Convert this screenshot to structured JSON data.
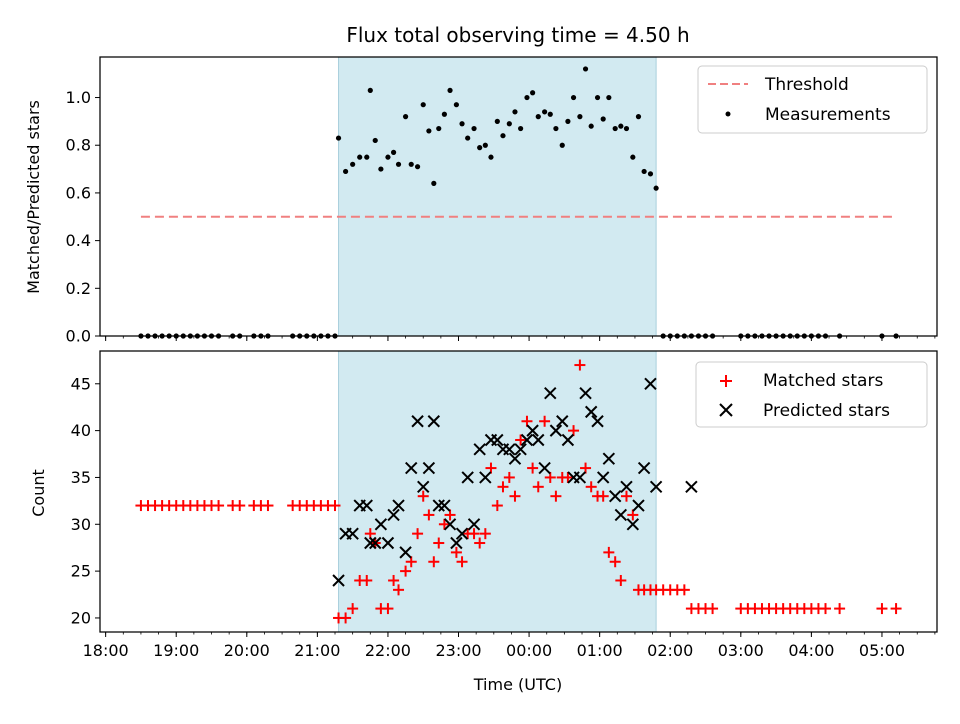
{
  "title": "Flux total observing time = 4.50 h",
  "colors": {
    "threshold": "#f08080",
    "measurement": "#000000",
    "matched": "#ff0000",
    "predicted": "#000000",
    "shade": "#add8e6"
  },
  "x_axis": {
    "label": "Time (UTC)",
    "ticks": [
      {
        "value": 18.0,
        "label": "18:00"
      },
      {
        "value": 19.0,
        "label": "19:00"
      },
      {
        "value": 20.0,
        "label": "20:00"
      },
      {
        "value": 21.0,
        "label": "21:00"
      },
      {
        "value": 22.0,
        "label": "22:00"
      },
      {
        "value": 23.0,
        "label": "23:00"
      },
      {
        "value": 24.0,
        "label": "00:00"
      },
      {
        "value": 25.0,
        "label": "01:00"
      },
      {
        "value": 26.0,
        "label": "02:00"
      },
      {
        "value": 27.0,
        "label": "03:00"
      },
      {
        "value": 28.0,
        "label": "04:00"
      },
      {
        "value": 29.0,
        "label": "05:00"
      }
    ]
  },
  "chart_data": [
    {
      "type": "scatter",
      "ylabel": "Matched/Predicted stars",
      "xlim": [
        17.92,
        29.78
      ],
      "ylim": [
        0,
        1.17
      ],
      "yticks": [
        0.0,
        0.2,
        0.4,
        0.6,
        0.8,
        1.0
      ],
      "yticklabels": [
        "0.0",
        "0.2",
        "0.4",
        "0.6",
        "0.8",
        "1.0"
      ],
      "shaded_interval": [
        21.3,
        25.8
      ],
      "legend": {
        "position": "top-right",
        "entries": [
          "Threshold",
          "Measurements"
        ]
      },
      "threshold": {
        "name": "Threshold",
        "y": 0.5,
        "x": [
          18.5,
          29.2
        ]
      },
      "series": [
        {
          "name": "Measurements",
          "marker": "dot",
          "x": [
            18.5,
            18.6,
            18.7,
            18.8,
            18.9,
            19.0,
            19.1,
            19.2,
            19.3,
            19.4,
            19.5,
            19.6,
            19.8,
            19.9,
            20.1,
            20.2,
            20.3,
            20.65,
            20.75,
            20.85,
            20.95,
            21.05,
            21.15,
            21.25,
            21.3,
            21.4,
            21.5,
            21.6,
            21.7,
            21.75,
            21.82,
            21.9,
            22.0,
            22.08,
            22.15,
            22.25,
            22.33,
            22.42,
            22.5,
            22.58,
            22.65,
            22.72,
            22.8,
            22.88,
            22.97,
            23.05,
            23.13,
            23.22,
            23.3,
            23.38,
            23.46,
            23.55,
            23.63,
            23.72,
            23.8,
            23.88,
            23.97,
            24.05,
            24.13,
            24.22,
            24.3,
            24.38,
            24.47,
            24.55,
            24.63,
            24.72,
            24.8,
            24.88,
            24.97,
            25.05,
            25.13,
            25.22,
            25.3,
            25.38,
            25.47,
            25.55,
            25.63,
            25.72,
            25.8,
            25.9,
            26.0,
            26.1,
            26.2,
            26.3,
            26.4,
            26.5,
            26.6,
            27.0,
            27.1,
            27.2,
            27.3,
            27.4,
            27.5,
            27.6,
            27.7,
            27.8,
            27.9,
            28.0,
            28.1,
            28.2,
            28.4,
            29.0,
            29.2
          ],
          "y": [
            0,
            0,
            0,
            0,
            0,
            0,
            0,
            0,
            0,
            0,
            0,
            0,
            0,
            0,
            0,
            0,
            0,
            0,
            0,
            0,
            0,
            0,
            0,
            0,
            0.83,
            0.69,
            0.72,
            0.75,
            0.75,
            1.03,
            0.82,
            0.7,
            0.75,
            0.77,
            0.72,
            0.92,
            0.72,
            0.71,
            0.97,
            0.86,
            0.64,
            0.87,
            0.93,
            1.03,
            0.97,
            0.89,
            0.83,
            0.87,
            0.79,
            0.8,
            0.75,
            0.9,
            0.84,
            0.89,
            0.94,
            0.87,
            1.0,
            1.02,
            0.92,
            0.94,
            0.93,
            0.87,
            0.8,
            0.9,
            1.0,
            0.92,
            1.12,
            0.88,
            1.0,
            0.91,
            1.0,
            0.87,
            0.88,
            0.87,
            0.75,
            0.92,
            0.69,
            0.68,
            0.62,
            0,
            0,
            0,
            0,
            0,
            0,
            0,
            0,
            0,
            0,
            0,
            0,
            0,
            0,
            0,
            0,
            0,
            0,
            0,
            0,
            0,
            0,
            0,
            0
          ]
        }
      ]
    },
    {
      "type": "scatter",
      "ylabel": "Count",
      "xlabel": "Time (UTC)",
      "xlim": [
        17.92,
        29.78
      ],
      "ylim": [
        18.5,
        48.5
      ],
      "yticks": [
        20,
        25,
        30,
        35,
        40,
        45
      ],
      "yticklabels": [
        "20",
        "25",
        "30",
        "35",
        "40",
        "45"
      ],
      "shaded_interval": [
        21.3,
        25.8
      ],
      "legend": {
        "position": "top-right",
        "entries": [
          "Matched stars",
          "Predicted stars"
        ]
      },
      "series": [
        {
          "name": "Matched stars",
          "marker": "plus",
          "x": [
            18.5,
            18.6,
            18.7,
            18.8,
            18.9,
            19.0,
            19.1,
            19.2,
            19.3,
            19.4,
            19.5,
            19.6,
            19.8,
            19.9,
            20.1,
            20.2,
            20.3,
            20.65,
            20.75,
            20.85,
            20.95,
            21.05,
            21.15,
            21.25,
            21.3,
            21.4,
            21.5,
            21.6,
            21.7,
            21.75,
            21.82,
            21.9,
            22.0,
            22.08,
            22.15,
            22.25,
            22.33,
            22.42,
            22.5,
            22.58,
            22.65,
            22.72,
            22.8,
            22.88,
            22.97,
            23.05,
            23.13,
            23.22,
            23.3,
            23.38,
            23.46,
            23.55,
            23.63,
            23.72,
            23.8,
            23.88,
            23.97,
            24.05,
            24.13,
            24.22,
            24.3,
            24.38,
            24.47,
            24.55,
            24.63,
            24.72,
            24.8,
            24.88,
            24.97,
            25.05,
            25.13,
            25.22,
            25.3,
            25.38,
            25.47,
            25.55,
            25.63,
            25.72,
            25.8,
            25.9,
            26.0,
            26.1,
            26.2,
            26.3,
            26.4,
            26.5,
            26.6,
            27.0,
            27.1,
            27.2,
            27.3,
            27.4,
            27.5,
            27.6,
            27.7,
            27.8,
            27.9,
            28.0,
            28.1,
            28.2,
            28.4,
            29.0,
            29.2
          ],
          "y": [
            32,
            32,
            32,
            32,
            32,
            32,
            32,
            32,
            32,
            32,
            32,
            32,
            32,
            32,
            32,
            32,
            32,
            32,
            32,
            32,
            32,
            32,
            32,
            32,
            20,
            20,
            21,
            24,
            24,
            29,
            28,
            21,
            21,
            24,
            23,
            25,
            26,
            29,
            33,
            31,
            26,
            28,
            30,
            31,
            27,
            26,
            29,
            29,
            28,
            29,
            36,
            32,
            34,
            35,
            33,
            39,
            41,
            36,
            34,
            41,
            35,
            33,
            35,
            35,
            40,
            47,
            36,
            34,
            33,
            33,
            27,
            26,
            24,
            33,
            31,
            23,
            23,
            23,
            23,
            23,
            23,
            23,
            23,
            21,
            21,
            21,
            21,
            21,
            21,
            21,
            21,
            21,
            21,
            21,
            21,
            21,
            21,
            21,
            21,
            21,
            21,
            21,
            21
          ]
        },
        {
          "name": "Predicted stars",
          "marker": "x",
          "x": [
            21.3,
            21.4,
            21.5,
            21.6,
            21.7,
            21.75,
            21.82,
            21.9,
            22.0,
            22.08,
            22.15,
            22.25,
            22.33,
            22.42,
            22.5,
            22.58,
            22.65,
            22.72,
            22.8,
            22.88,
            22.97,
            23.05,
            23.13,
            23.22,
            23.3,
            23.38,
            23.46,
            23.55,
            23.63,
            23.72,
            23.8,
            23.88,
            23.97,
            24.05,
            24.13,
            24.22,
            24.3,
            24.38,
            24.47,
            24.55,
            24.63,
            24.72,
            24.8,
            24.88,
            24.97,
            25.05,
            25.13,
            25.22,
            25.3,
            25.38,
            25.47,
            25.55,
            25.63,
            25.72,
            25.8,
            26.3
          ],
          "y": [
            24,
            29,
            29,
            32,
            32,
            28,
            28,
            30,
            28,
            31,
            32,
            27,
            36,
            41,
            34,
            36,
            41,
            32,
            32,
            30,
            28,
            29,
            35,
            30,
            38,
            35,
            39,
            39,
            38,
            38,
            37,
            38,
            39,
            40,
            39,
            36,
            44,
            40,
            41,
            39,
            35,
            35,
            44,
            42,
            41,
            35,
            37,
            33,
            31,
            34,
            30,
            32,
            36,
            45,
            34,
            34
          ]
        }
      ]
    }
  ]
}
